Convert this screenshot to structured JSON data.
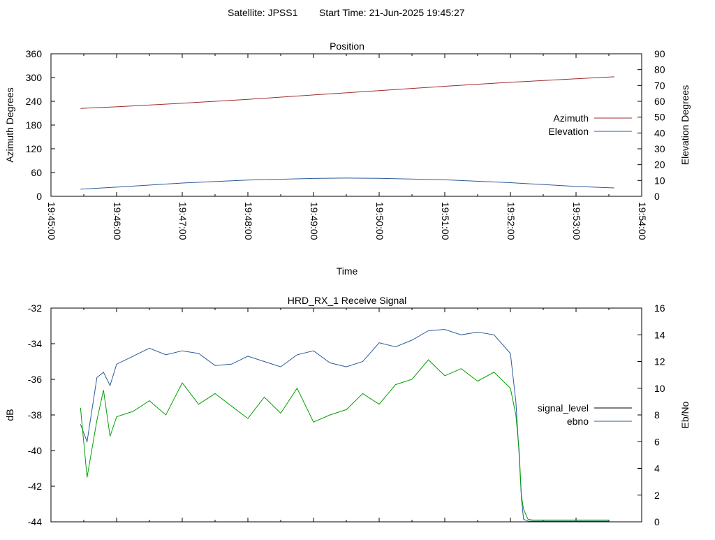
{
  "header": {
    "satellite": "Satellite: JPSS1",
    "start_time": "Start Time: 21-Jun-2025 19:45:27"
  },
  "chart_data": [
    {
      "type": "line",
      "title": "Position",
      "xlabel": "Time",
      "ylabel": "Azimuth Degrees",
      "y2label": "Elevation Degrees",
      "xlim": [
        "19:45:00",
        "19:54:00"
      ],
      "ylim": [
        0,
        360
      ],
      "y2lim": [
        0,
        90
      ],
      "x_ticks": [
        "19:45:00",
        "19:46:00",
        "19:47:00",
        "19:48:00",
        "19:49:00",
        "19:50:00",
        "19:51:00",
        "19:52:00",
        "19:53:00",
        "19:54:00"
      ],
      "y_ticks": [
        "0",
        "60",
        "120",
        "180",
        "240",
        "300",
        "360"
      ],
      "y2_ticks": [
        "0",
        "10",
        "20",
        "30",
        "40",
        "50",
        "60",
        "70",
        "80",
        "90"
      ],
      "legend_position": "right",
      "series": [
        {
          "name": "Azimuth",
          "axis": "y",
          "color": "#a02c2c",
          "x": [
            "19:45:27",
            "19:46:00",
            "19:47:00",
            "19:48:00",
            "19:49:00",
            "19:50:00",
            "19:51:00",
            "19:52:00",
            "19:53:00",
            "19:53:35"
          ],
          "values": [
            222,
            226,
            235,
            245,
            256,
            267,
            278,
            288,
            297,
            302
          ]
        },
        {
          "name": "Elevation",
          "axis": "y2",
          "color": "#2c5a9a",
          "x": [
            "19:45:27",
            "19:46:00",
            "19:47:00",
            "19:48:00",
            "19:49:00",
            "19:49:30",
            "19:50:00",
            "19:51:00",
            "19:52:00",
            "19:53:00",
            "19:53:35"
          ],
          "values": [
            4.5,
            5.8,
            8.4,
            10.3,
            11.3,
            11.5,
            11.4,
            10.4,
            8.6,
            6.2,
            5.3
          ]
        }
      ]
    },
    {
      "type": "line",
      "title": "HRD_RX_1 Receive Signal",
      "ylabel": "dB",
      "y2label": "Eb/No",
      "xlim": [
        "19:45:00",
        "19:54:00"
      ],
      "ylim": [
        -44,
        -32
      ],
      "y2lim": [
        0,
        16
      ],
      "y_ticks": [
        "-44",
        "-42",
        "-40",
        "-38",
        "-36",
        "-34",
        "-32"
      ],
      "y2_ticks": [
        "0",
        "2",
        "4",
        "6",
        "8",
        "10",
        "12",
        "14",
        "16"
      ],
      "legend_position": "right",
      "series": [
        {
          "name": "signal_level",
          "axis": "y",
          "color": "#00a000",
          "x": [
            "19:45:27",
            "19:45:33",
            "19:45:42",
            "19:45:48",
            "19:45:54",
            "19:46:00",
            "19:46:15",
            "19:46:30",
            "19:46:45",
            "19:47:00",
            "19:47:15",
            "19:47:30",
            "19:47:45",
            "19:48:00",
            "19:48:15",
            "19:48:30",
            "19:48:45",
            "19:49:00",
            "19:49:15",
            "19:49:30",
            "19:49:45",
            "19:50:00",
            "19:50:15",
            "19:50:30",
            "19:50:45",
            "19:51:00",
            "19:51:15",
            "19:51:30",
            "19:51:45",
            "19:52:00",
            "19:52:05",
            "19:52:08",
            "19:52:10",
            "19:52:12",
            "19:52:16",
            "19:52:20",
            "19:52:30",
            "19:53:00",
            "19:53:30"
          ],
          "values": [
            -37.6,
            -41.5,
            -38.3,
            -36.6,
            -39.2,
            -38.1,
            -37.8,
            -37.2,
            -38.0,
            -36.2,
            -37.4,
            -36.8,
            -37.5,
            -38.2,
            -37.0,
            -37.9,
            -36.5,
            -38.4,
            -38.0,
            -37.7,
            -36.8,
            -37.4,
            -36.3,
            -36.0,
            -34.9,
            -35.8,
            -35.4,
            -36.1,
            -35.6,
            -36.5,
            -38.0,
            -40.0,
            -42.5,
            -43.3,
            -43.85,
            -43.9,
            -43.9,
            -43.9,
            -43.9
          ]
        },
        {
          "name": "ebno",
          "axis": "y2",
          "color": "#2c5a9a",
          "x": [
            "19:45:27",
            "19:45:33",
            "19:45:42",
            "19:45:48",
            "19:45:54",
            "19:46:00",
            "19:46:15",
            "19:46:30",
            "19:46:45",
            "19:47:00",
            "19:47:15",
            "19:47:30",
            "19:47:45",
            "19:48:00",
            "19:48:15",
            "19:48:30",
            "19:48:45",
            "19:49:00",
            "19:49:15",
            "19:49:30",
            "19:49:45",
            "19:50:00",
            "19:50:15",
            "19:50:30",
            "19:50:45",
            "19:51:00",
            "19:51:15",
            "19:51:30",
            "19:51:45",
            "19:52:00",
            "19:52:05",
            "19:52:08",
            "19:52:10",
            "19:52:12",
            "19:52:16",
            "19:52:20",
            "19:52:30",
            "19:53:00",
            "19:53:30"
          ],
          "values": [
            7.3,
            6.0,
            10.8,
            11.2,
            10.2,
            11.8,
            12.4,
            13.0,
            12.5,
            12.8,
            12.6,
            11.7,
            11.8,
            12.4,
            12.0,
            11.6,
            12.5,
            12.8,
            11.9,
            11.6,
            12.0,
            13.4,
            13.1,
            13.6,
            14.3,
            14.4,
            14.0,
            14.2,
            14.0,
            12.6,
            9.0,
            5.0,
            1.8,
            0.2,
            0.05,
            0.05,
            0.05,
            0.05,
            0.05
          ]
        }
      ]
    }
  ]
}
